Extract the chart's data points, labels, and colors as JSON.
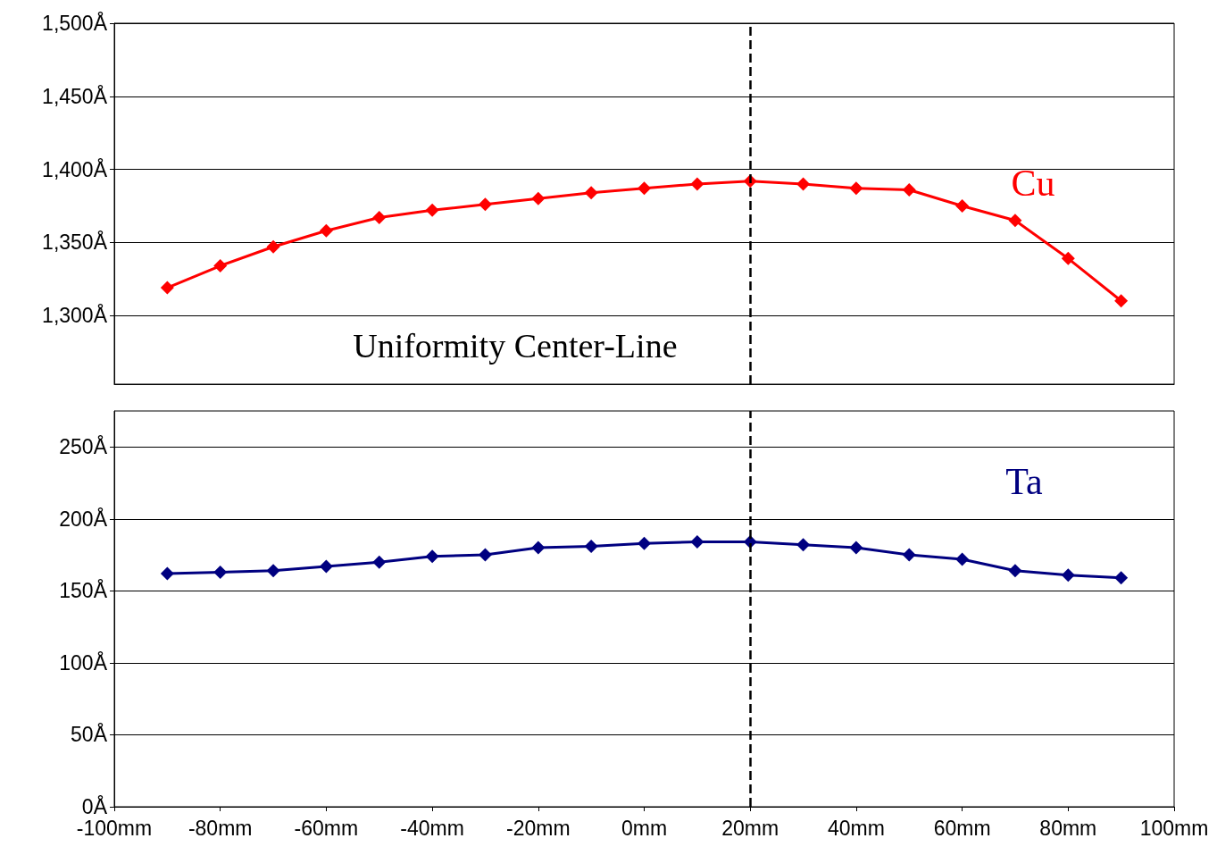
{
  "chart_data": [
    {
      "type": "line",
      "x": [
        -90,
        -80,
        -70,
        -60,
        -50,
        -40,
        -30,
        -20,
        -10,
        0,
        10,
        20,
        30,
        40,
        50,
        60,
        70,
        80,
        90
      ],
      "series": [
        {
          "name": "Cu",
          "color": "#ff0000",
          "values": [
            1319,
            1334,
            1347,
            1358,
            1367,
            1372,
            1376,
            1380,
            1384,
            1387,
            1390,
            1392,
            1390,
            1387,
            1386,
            1375,
            1365,
            1339,
            1310
          ]
        }
      ],
      "xlim": [
        -100,
        100
      ],
      "ylim": [
        1253,
        1500
      ],
      "yticks": [
        {
          "value": 1300,
          "label": "1,300Å"
        },
        {
          "value": 1350,
          "label": "1,350Å"
        },
        {
          "value": 1400,
          "label": "1,400Å"
        },
        {
          "value": 1450,
          "label": "1,450Å"
        },
        {
          "value": 1500,
          "label": "1,500Å"
        }
      ],
      "tick_labels": "y",
      "grid": "y",
      "marker": "diamond",
      "line_style": "solid",
      "legend": false,
      "ref_lines": [
        {
          "axis": "x",
          "value": 20,
          "label": "Uniformity Center-Line",
          "color": "#000000",
          "line_style": "dashed"
        }
      ]
    },
    {
      "type": "line",
      "x": [
        -90,
        -80,
        -70,
        -60,
        -50,
        -40,
        -30,
        -20,
        -10,
        0,
        10,
        20,
        30,
        40,
        50,
        60,
        70,
        80,
        90
      ],
      "series": [
        {
          "name": "Ta",
          "color": "#000080",
          "values": [
            162,
            163,
            164,
            167,
            170,
            174,
            175,
            180,
            181,
            183,
            184,
            184,
            182,
            180,
            175,
            172,
            164,
            161,
            159
          ]
        }
      ],
      "xlim": [
        -100,
        100
      ],
      "xticks": [
        {
          "value": -100,
          "label": "-100mm"
        },
        {
          "value": -80,
          "label": "-80mm"
        },
        {
          "value": -60,
          "label": "-60mm"
        },
        {
          "value": -40,
          "label": "-40mm"
        },
        {
          "value": -20,
          "label": "-20mm"
        },
        {
          "value": 0,
          "label": "0mm"
        },
        {
          "value": 20,
          "label": "20mm"
        },
        {
          "value": 40,
          "label": "40mm"
        },
        {
          "value": 60,
          "label": "60mm"
        },
        {
          "value": 80,
          "label": "80mm"
        },
        {
          "value": 100,
          "label": "100mm"
        }
      ],
      "ylim": [
        0,
        275
      ],
      "yticks": [
        {
          "value": 0,
          "label": "0Å"
        },
        {
          "value": 50,
          "label": "50Å"
        },
        {
          "value": 100,
          "label": "100Å"
        },
        {
          "value": 150,
          "label": "150Å"
        },
        {
          "value": 200,
          "label": "200Å"
        },
        {
          "value": 250,
          "label": "250Å"
        }
      ],
      "grid": "y",
      "marker": "diamond",
      "line_style": "solid",
      "legend": false,
      "ref_lines": [
        {
          "axis": "x",
          "value": 20,
          "color": "#000000",
          "line_style": "dashed"
        }
      ]
    }
  ]
}
